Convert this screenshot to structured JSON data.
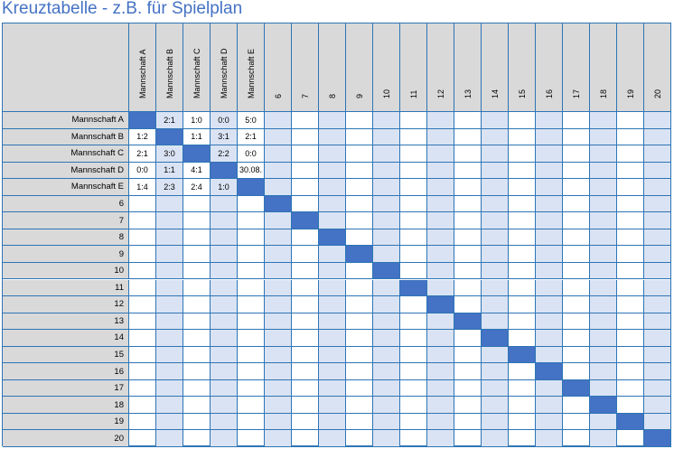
{
  "title": "Kreuztabelle - z.B. für Spielplan",
  "teams": [
    "Mannschaft A",
    "Mannschaft B",
    "Mannschaft C",
    "Mannschaft D",
    "Mannschaft E",
    "6",
    "7",
    "8",
    "9",
    "10",
    "11",
    "12",
    "13",
    "14",
    "15",
    "16",
    "17",
    "18",
    "19",
    "20"
  ],
  "results": [
    [
      "",
      "2:1",
      "1:0",
      "0:0",
      "5:0"
    ],
    [
      "1:2",
      "",
      "1:1",
      "3:1",
      "2:1"
    ],
    [
      "2:1",
      "3:0",
      "",
      "2:2",
      "0:0"
    ],
    [
      "0:0",
      "1:1",
      "4:1",
      "",
      "30.08."
    ],
    [
      "1:4",
      "2:3",
      "2:4",
      "1:0",
      ""
    ]
  ],
  "colors": {
    "title": "#4472c4",
    "grid_line": "#2e75b6",
    "header_bg": "#d9d9d9",
    "shaded_column": "#dae3f3",
    "diagonal": "#4472c4"
  }
}
